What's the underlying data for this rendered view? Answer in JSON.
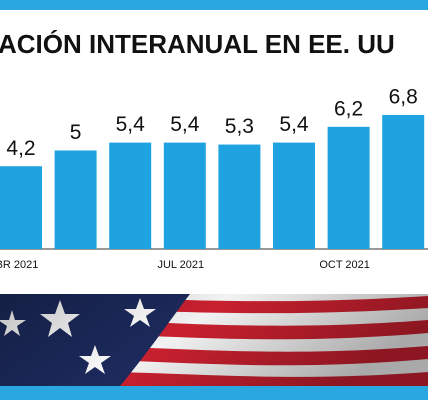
{
  "chart_data": {
    "type": "bar",
    "title": "ACIÓN INTERANUAL EN EE. UU",
    "categories": [
      "BR 2021",
      null,
      null,
      "JUL 2021",
      null,
      null,
      "OCT 2021",
      null
    ],
    "values": [
      4.2,
      5,
      5.4,
      5.4,
      5.3,
      5.4,
      6.2,
      6.8
    ],
    "value_labels": [
      "4,2",
      "5",
      "5,4",
      "5,4",
      "5,3",
      "5,4",
      "6,2",
      "6,8"
    ],
    "color": "#1ea3e0"
  }
}
